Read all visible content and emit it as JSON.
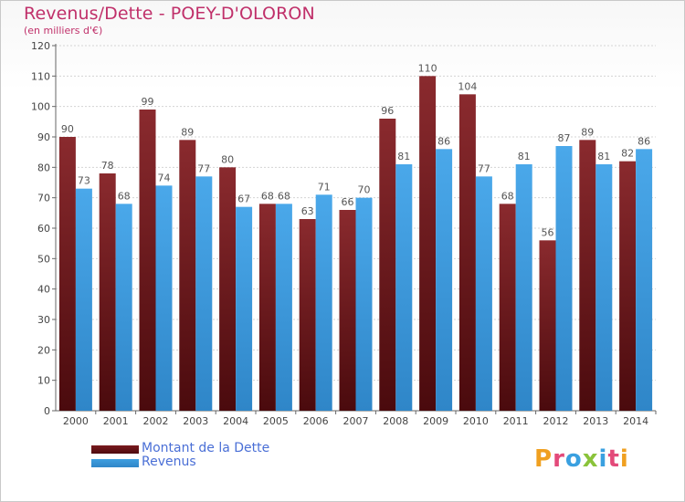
{
  "header": {
    "title": "Revenus/Dette - POEY-D'OLORON",
    "subtitle": "(en milliers d'€)"
  },
  "legend": {
    "debt_label": "Montant de la Dette",
    "revenue_label": "Revenus"
  },
  "logo": {
    "text": "Proxiti",
    "colors": [
      "#f0a020",
      "#e34a7a",
      "#3aa0e0",
      "#8ac33a",
      "#3aa0e0",
      "#e34a7a",
      "#f0a020"
    ]
  },
  "colors": {
    "debt": "#7a1a1e",
    "revenue": "#3f9fe0",
    "title": "#c0306a",
    "legend_text": "#4a6fd6"
  },
  "chart_data": {
    "type": "bar",
    "title": "Revenus/Dette - POEY-D'OLORON",
    "subtitle": "(en milliers d'€)",
    "categories": [
      "2000",
      "2001",
      "2002",
      "2003",
      "2004",
      "2005",
      "2006",
      "2007",
      "2008",
      "2009",
      "2010",
      "2011",
      "2012",
      "2013",
      "2014"
    ],
    "series": [
      {
        "name": "Montant de la Dette",
        "color": "#7a1a1e",
        "values": [
          90,
          78,
          99,
          89,
          80,
          68,
          63,
          66,
          96,
          110,
          104,
          68,
          56,
          89,
          82
        ]
      },
      {
        "name": "Revenus",
        "color": "#3f9fe0",
        "values": [
          73,
          68,
          74,
          77,
          67,
          68,
          71,
          70,
          81,
          86,
          77,
          81,
          87,
          81,
          86
        ]
      }
    ],
    "yticks": [
      0,
      10,
      20,
      30,
      40,
      50,
      60,
      70,
      80,
      90,
      100,
      110,
      120
    ],
    "ylim": [
      0,
      120
    ],
    "grid": true,
    "legend_position": "bottom-left"
  }
}
